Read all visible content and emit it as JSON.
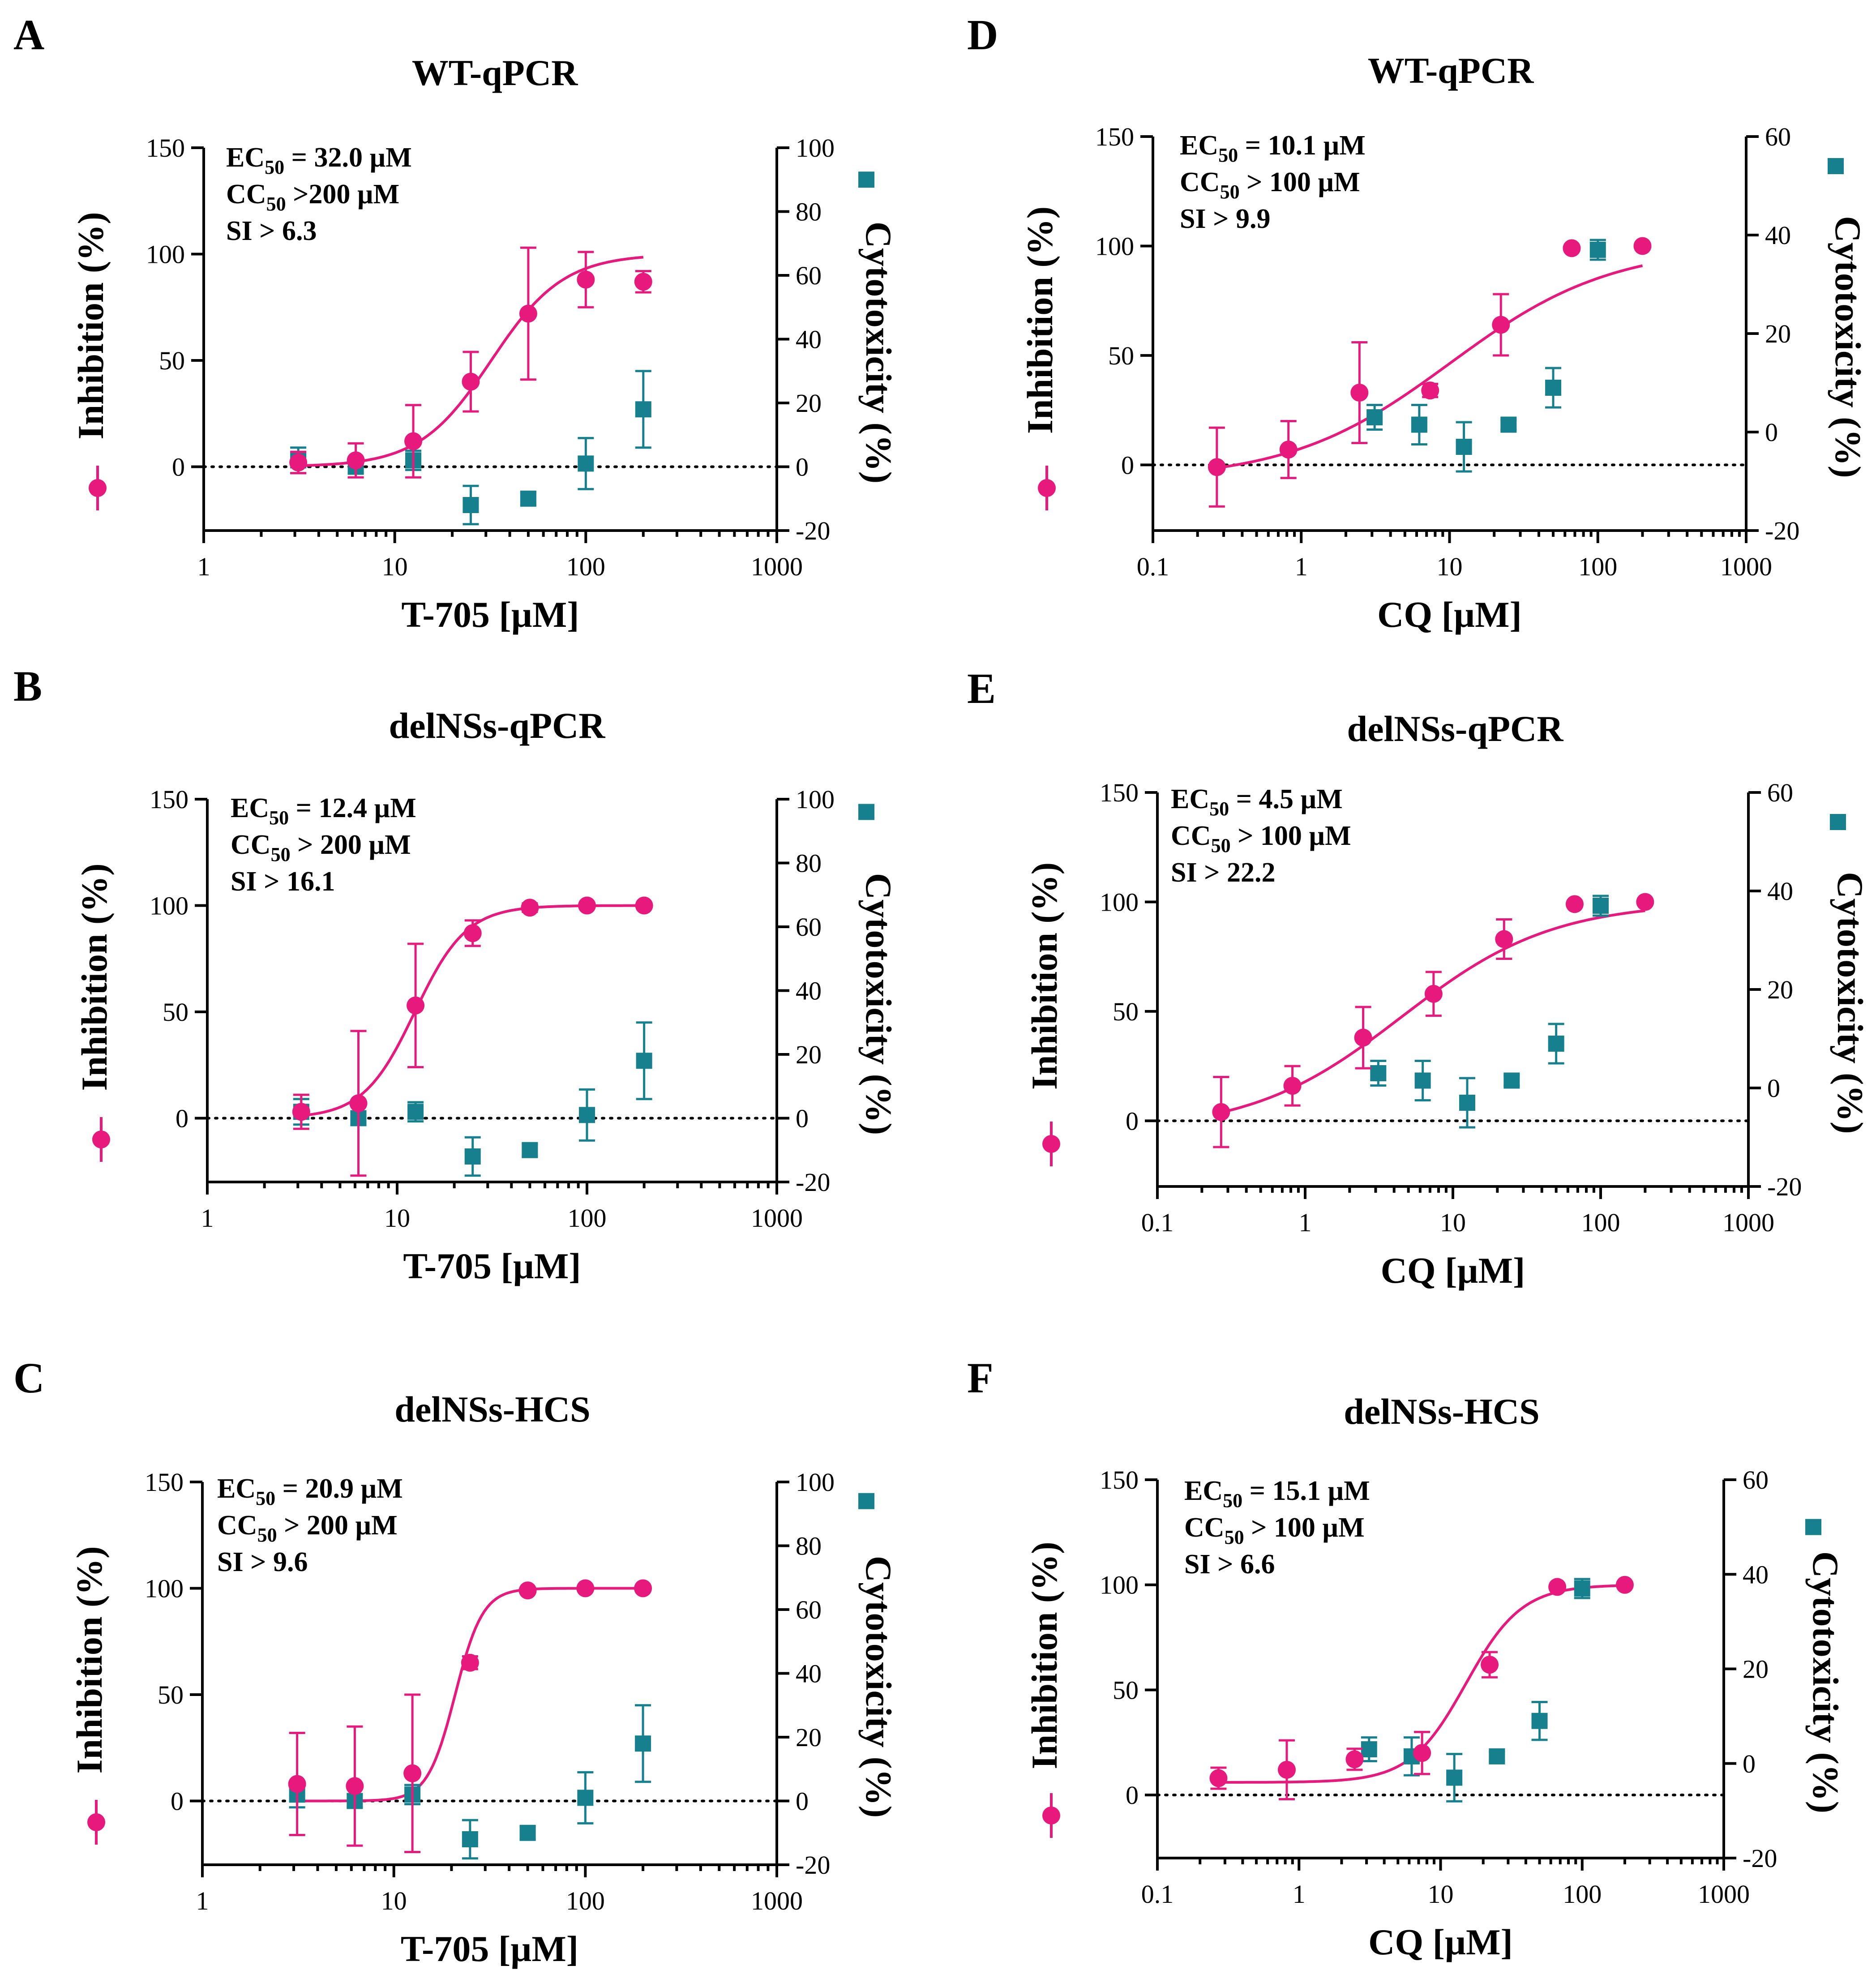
{
  "colors": {
    "inhibition": "#e8197c",
    "cytotoxicity": "#17808f"
  },
  "chart_data": [
    {
      "type": "scatter",
      "letter": "A",
      "title": "WT-qPCR",
      "xlabel": "T-705 [µM]",
      "ylabel_left": "Inhibition (%)",
      "ylabel_right": "Cytotoxicity (%)",
      "x_ticks": [
        "1",
        "10",
        "100",
        "1000"
      ],
      "xlim": [
        1,
        1000
      ],
      "y_left_ticks": [
        "0",
        "50",
        "100",
        "150"
      ],
      "ylim_left": [
        -30,
        150
      ],
      "y_right_ticks": [
        "-20",
        "0",
        "20",
        "40",
        "60",
        "80",
        "100"
      ],
      "ylim_right": [
        -20,
        100
      ],
      "fit": {
        "bottom": 0,
        "top": 100,
        "ec50": 32.0,
        "hill": 2.3,
        "x_range": [
          3.125,
          200
        ]
      },
      "annotation": {
        "ec_label": "EC",
        "ec_sub": "50",
        "ec_value": " = 32.0 µM",
        "cc_label": "CC",
        "cc_sub": "50",
        "cc_value": " >200 µM",
        "si": "SI > 6.3"
      },
      "inhibition": {
        "name": "Inhibition",
        "x": [
          3.125,
          6.25,
          12.5,
          25,
          50,
          100,
          200
        ],
        "y": [
          2,
          3,
          12,
          40,
          72,
          88,
          87
        ],
        "err": [
          5,
          8,
          17,
          14,
          31,
          13,
          5
        ]
      },
      "cytotoxicity": {
        "name": "Cytotoxicity",
        "x": [
          3.125,
          6.25,
          12.5,
          25,
          50,
          100,
          200
        ],
        "y": [
          2,
          0,
          2,
          -12,
          -10,
          1,
          18
        ],
        "err": [
          4,
          2,
          3,
          6,
          2,
          8,
          12
        ]
      },
      "legend_square_value": 90
    },
    {
      "type": "scatter",
      "letter": "B",
      "title": "delNSs-qPCR",
      "xlabel": "T-705 [µM]",
      "ylabel_left": "Inhibition (%)",
      "ylabel_right": "Cytotoxicity (%)",
      "x_ticks": [
        "1",
        "10",
        "100",
        "1000"
      ],
      "xlim": [
        1,
        1000
      ],
      "y_left_ticks": [
        "0",
        "50",
        "100",
        "150"
      ],
      "ylim_left": [
        -30,
        150
      ],
      "y_right_ticks": [
        "-20",
        "0",
        "20",
        "40",
        "60",
        "80",
        "100"
      ],
      "ylim_right": [
        -20,
        100
      ],
      "fit": {
        "bottom": 0,
        "top": 100,
        "ec50": 12.4,
        "hill": 3.2,
        "x_range": [
          3.125,
          200
        ]
      },
      "annotation": {
        "ec_label": "EC",
        "ec_sub": "50",
        "ec_value": " = 12.4 µM",
        "cc_label": "CC",
        "cc_sub": "50",
        "cc_value": " > 200 µM",
        "si": "SI > 16.1"
      },
      "inhibition": {
        "name": "Inhibition",
        "x": [
          3.125,
          6.25,
          12.5,
          25,
          50,
          100,
          200
        ],
        "y": [
          3,
          7,
          53,
          87,
          99,
          100,
          100
        ],
        "err": [
          8,
          34,
          29,
          6,
          2,
          1,
          1
        ]
      },
      "cytotoxicity": {
        "name": "Cytotoxicity",
        "x": [
          3.125,
          6.25,
          12.5,
          25,
          50,
          100,
          200
        ],
        "y": [
          2,
          0,
          2,
          -12,
          -10,
          1,
          18
        ],
        "err": [
          4,
          2,
          3,
          6,
          2,
          8,
          12
        ]
      },
      "legend_square_value": 96
    },
    {
      "type": "scatter",
      "letter": "C",
      "title": "delNSs-HCS",
      "xlabel": "T-705 [µM]",
      "ylabel_left": "Inhibition (%)",
      "ylabel_right": "Cytotoxicity (%)",
      "x_ticks": [
        "1",
        "10",
        "100",
        "1000"
      ],
      "xlim": [
        1,
        1000
      ],
      "y_left_ticks": [
        "0",
        "50",
        "100",
        "150"
      ],
      "ylim_left": [
        -30,
        150
      ],
      "y_right_ticks": [
        "-20",
        "0",
        "20",
        "40",
        "60",
        "80",
        "100"
      ],
      "ylim_right": [
        -20,
        100
      ],
      "fit": {
        "bottom": 0,
        "top": 100,
        "ec50": 20.9,
        "hill": 6,
        "x_range": [
          3.125,
          200
        ]
      },
      "annotation": {
        "ec_label": "EC",
        "ec_sub": "50",
        "ec_value": " = 20.9 µM",
        "cc_label": "CC",
        "cc_sub": "50",
        "cc_value": " > 200 µM",
        "si": "SI > 9.6"
      },
      "inhibition": {
        "name": "Inhibition",
        "x": [
          3.125,
          6.25,
          12.5,
          25,
          50,
          100,
          200
        ],
        "y": [
          8,
          7,
          13,
          65,
          99,
          100,
          100
        ],
        "err": [
          24,
          28,
          37,
          3,
          1,
          1,
          1
        ]
      },
      "cytotoxicity": {
        "name": "Cytotoxicity",
        "x": [
          3.125,
          6.25,
          12.5,
          25,
          50,
          100,
          200
        ],
        "y": [
          2,
          0,
          2,
          -12,
          -10,
          1,
          18
        ],
        "err": [
          4,
          2,
          3,
          6,
          2,
          8,
          12
        ]
      },
      "legend_square_value": 94
    },
    {
      "type": "scatter",
      "letter": "D",
      "title": "WT-qPCR",
      "xlabel": "CQ [µM]",
      "ylabel_left": "Inhibition (%)",
      "ylabel_right": "Cytotoxicity (%)",
      "x_ticks": [
        "0.1",
        "1",
        "10",
        "100",
        "1000"
      ],
      "xlim": [
        0.1,
        1000
      ],
      "y_left_ticks": [
        "0",
        "50",
        "100",
        "150"
      ],
      "ylim_left": [
        -30,
        150
      ],
      "y_right_ticks": [
        "-20",
        "0",
        "20",
        "40",
        "60"
      ],
      "ylim_right": [
        -20,
        60
      ],
      "fit": {
        "bottom": -7,
        "top": 100,
        "ec50": 10.1,
        "hill": 0.8,
        "x_range": [
          0.27,
          200
        ]
      },
      "annotation": {
        "ec_label": "EC",
        "ec_sub": "50",
        "ec_value": " = 10.1 µM",
        "cc_label": "CC",
        "cc_sub": "50",
        "cc_value": " > 100 µM",
        "si": "SI > 9.9"
      },
      "inhibition": {
        "name": "Inhibition",
        "x": [
          0.27,
          0.82,
          2.47,
          7.4,
          22.2,
          66.7,
          200
        ],
        "y": [
          -1,
          7,
          33,
          34,
          64,
          99,
          100
        ],
        "err": [
          18,
          13,
          23,
          3,
          14,
          1,
          1
        ]
      },
      "cytotoxicity": {
        "name": "Cytotoxicity",
        "x": [
          3.125,
          6.25,
          12.5,
          25,
          50,
          100
        ],
        "y": [
          3,
          1.5,
          -3,
          1.5,
          9,
          37
        ],
        "err": [
          2.5,
          4,
          5,
          1,
          4,
          2
        ]
      },
      "legend_square_value": 54
    },
    {
      "type": "scatter",
      "letter": "E",
      "title": "delNSs-qPCR",
      "xlabel": "CQ [µM]",
      "ylabel_left": "Inhibition (%)",
      "ylabel_right": "Cytotoxicity (%)",
      "x_ticks": [
        "0.1",
        "1",
        "10",
        "100",
        "1000"
      ],
      "xlim": [
        0.1,
        1000
      ],
      "y_left_ticks": [
        "0",
        "50",
        "100",
        "150"
      ],
      "ylim_left": [
        -30,
        150
      ],
      "y_right_ticks": [
        "-20",
        "0",
        "20",
        "40",
        "60"
      ],
      "ylim_right": [
        -20,
        60
      ],
      "fit": {
        "bottom": -5,
        "top": 100,
        "ec50": 4.5,
        "hill": 0.85,
        "x_range": [
          0.27,
          200
        ]
      },
      "annotation": {
        "ec_label": "EC",
        "ec_sub": "50",
        "ec_value": " = 4.5 µM",
        "cc_label": "CC",
        "cc_sub": "50",
        "cc_value": " > 100 µM",
        "si": "SI > 22.2"
      },
      "inhibition": {
        "name": "Inhibition",
        "x": [
          0.27,
          0.82,
          2.47,
          7.4,
          22.2,
          66.7,
          200
        ],
        "y": [
          4,
          16,
          38,
          58,
          83,
          99,
          100
        ],
        "err": [
          16,
          9,
          14,
          10,
          9,
          1,
          1
        ]
      },
      "cytotoxicity": {
        "name": "Cytotoxicity",
        "x": [
          3.125,
          6.25,
          12.5,
          25,
          50,
          100
        ],
        "y": [
          3,
          1.5,
          -3,
          1.5,
          9,
          37
        ],
        "err": [
          2.5,
          4,
          5,
          1,
          4,
          2
        ]
      },
      "legend_square_value": 54
    },
    {
      "type": "scatter",
      "letter": "F",
      "title": "delNSs-HCS",
      "xlabel": "CQ [µM]",
      "ylabel_left": "Inhibition (%)",
      "ylabel_right": "Cytotoxicity (%)",
      "x_ticks": [
        "0.1",
        "1",
        "10",
        "100",
        "1000"
      ],
      "xlim": [
        0.1,
        1000
      ],
      "y_left_ticks": [
        "0",
        "50",
        "100",
        "150"
      ],
      "ylim_left": [
        -30,
        150
      ],
      "y_right_ticks": [
        "-20",
        "0",
        "20",
        "40",
        "60"
      ],
      "ylim_right": [
        -20,
        60
      ],
      "fit": {
        "bottom": 6,
        "top": 100,
        "ec50": 15.1,
        "hill": 2.2,
        "x_range": [
          0.27,
          200
        ]
      },
      "annotation": {
        "ec_label": "EC",
        "ec_sub": "50",
        "ec_value": " = 15.1 µM",
        "cc_label": "CC",
        "cc_sub": "50",
        "cc_value": " > 100 µM",
        "si": "SI > 6.6"
      },
      "inhibition": {
        "name": "Inhibition",
        "x": [
          0.27,
          0.82,
          2.47,
          7.4,
          22.2,
          66.7,
          200
        ],
        "y": [
          8,
          12,
          17,
          20,
          62,
          99,
          100
        ],
        "err": [
          5,
          14,
          5,
          10,
          6,
          1,
          1
        ]
      },
      "cytotoxicity": {
        "name": "Cytotoxicity",
        "x": [
          3.125,
          6.25,
          12.5,
          25,
          50,
          100
        ],
        "y": [
          3,
          1.5,
          -3,
          1.5,
          9,
          37
        ],
        "err": [
          2.5,
          4,
          5,
          1,
          4,
          2
        ]
      },
      "legend_square_value": 50
    }
  ]
}
